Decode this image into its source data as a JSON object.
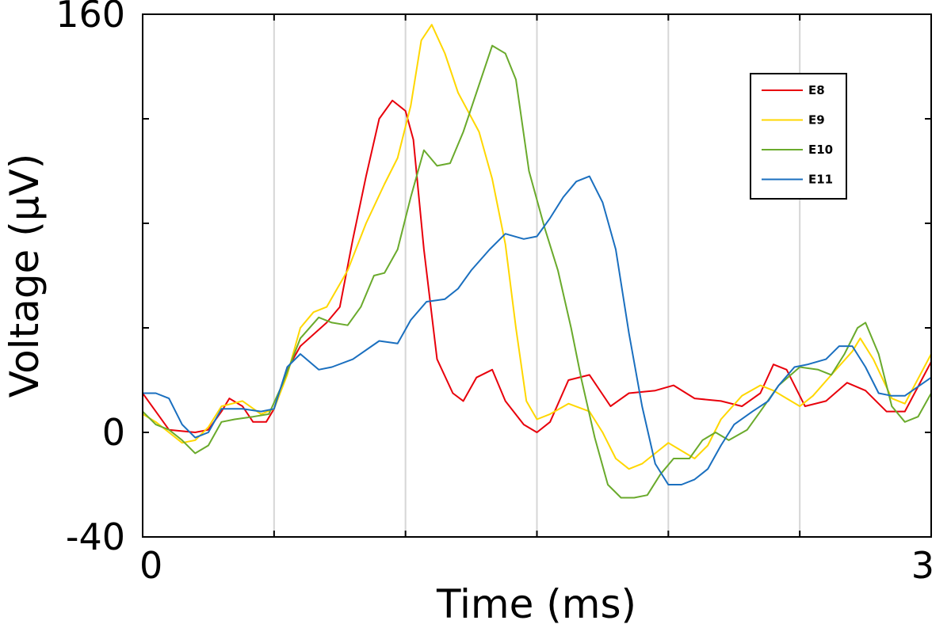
{
  "chart_data": {
    "type": "line",
    "title": "",
    "xlabel": "Time (ms)",
    "ylabel": "Voltage (µV)",
    "xlim": [
      0,
      3
    ],
    "ylim": [
      -40,
      160
    ],
    "x_ticks": [
      0,
      0.5,
      1,
      1.5,
      2,
      2.5,
      3
    ],
    "x_tick_labels": [
      "0",
      "",
      "",
      "",
      "",
      "",
      "3"
    ],
    "y_ticks": [
      -40,
      0,
      40,
      80,
      120,
      160
    ],
    "y_tick_labels": [
      "-40",
      "0",
      "",
      "",
      "",
      "160"
    ],
    "grid": {
      "x": true,
      "y": false
    },
    "legend": {
      "position": "top-right"
    },
    "series": [
      {
        "name": "E8",
        "color": "#e8000b",
        "points": [
          [
            0,
            15
          ],
          [
            0.05,
            8
          ],
          [
            0.1,
            1
          ],
          [
            0.2,
            0
          ],
          [
            0.25,
            1
          ],
          [
            0.3,
            8
          ],
          [
            0.33,
            13
          ],
          [
            0.38,
            10
          ],
          [
            0.42,
            4
          ],
          [
            0.47,
            4
          ],
          [
            0.5,
            9
          ],
          [
            0.55,
            24
          ],
          [
            0.6,
            33
          ],
          [
            0.7,
            42
          ],
          [
            0.75,
            48
          ],
          [
            0.8,
            74
          ],
          [
            0.85,
            98
          ],
          [
            0.9,
            120
          ],
          [
            0.95,
            127
          ],
          [
            1.0,
            123
          ],
          [
            1.03,
            112
          ],
          [
            1.07,
            70
          ],
          [
            1.12,
            28
          ],
          [
            1.18,
            15
          ],
          [
            1.22,
            12
          ],
          [
            1.27,
            21
          ],
          [
            1.33,
            24
          ],
          [
            1.38,
            12
          ],
          [
            1.45,
            3
          ],
          [
            1.5,
            0
          ],
          [
            1.55,
            4
          ],
          [
            1.62,
            20
          ],
          [
            1.7,
            22
          ],
          [
            1.78,
            10
          ],
          [
            1.85,
            15
          ],
          [
            1.95,
            16
          ],
          [
            2.02,
            18
          ],
          [
            2.1,
            13
          ],
          [
            2.2,
            12
          ],
          [
            2.28,
            10
          ],
          [
            2.35,
            15
          ],
          [
            2.4,
            26
          ],
          [
            2.45,
            24
          ],
          [
            2.52,
            10
          ],
          [
            2.6,
            12
          ],
          [
            2.68,
            19
          ],
          [
            2.75,
            16
          ],
          [
            2.83,
            8
          ],
          [
            2.9,
            8
          ],
          [
            3.0,
            27
          ]
        ]
      },
      {
        "name": "E9",
        "color": "#ffd700",
        "points": [
          [
            0,
            7
          ],
          [
            0.05,
            4
          ],
          [
            0.1,
            0
          ],
          [
            0.15,
            -4
          ],
          [
            0.2,
            -3
          ],
          [
            0.25,
            2
          ],
          [
            0.3,
            10
          ],
          [
            0.38,
            12
          ],
          [
            0.45,
            7
          ],
          [
            0.5,
            9
          ],
          [
            0.55,
            22
          ],
          [
            0.6,
            40
          ],
          [
            0.65,
            46
          ],
          [
            0.7,
            48
          ],
          [
            0.78,
            62
          ],
          [
            0.85,
            80
          ],
          [
            0.92,
            95
          ],
          [
            0.97,
            105
          ],
          [
            1.02,
            125
          ],
          [
            1.06,
            150
          ],
          [
            1.1,
            156
          ],
          [
            1.15,
            145
          ],
          [
            1.2,
            130
          ],
          [
            1.28,
            115
          ],
          [
            1.33,
            97
          ],
          [
            1.38,
            72
          ],
          [
            1.42,
            40
          ],
          [
            1.46,
            12
          ],
          [
            1.5,
            5
          ],
          [
            1.55,
            7
          ],
          [
            1.62,
            11
          ],
          [
            1.7,
            8
          ],
          [
            1.75,
            0
          ],
          [
            1.8,
            -10
          ],
          [
            1.85,
            -14
          ],
          [
            1.9,
            -12
          ],
          [
            1.95,
            -8
          ],
          [
            2.0,
            -4
          ],
          [
            2.05,
            -7
          ],
          [
            2.1,
            -10
          ],
          [
            2.15,
            -5
          ],
          [
            2.2,
            5
          ],
          [
            2.28,
            14
          ],
          [
            2.35,
            18
          ],
          [
            2.4,
            16
          ],
          [
            2.45,
            13
          ],
          [
            2.5,
            10
          ],
          [
            2.55,
            14
          ],
          [
            2.62,
            22
          ],
          [
            2.7,
            31
          ],
          [
            2.73,
            36
          ],
          [
            2.78,
            28
          ],
          [
            2.85,
            13
          ],
          [
            2.9,
            11
          ],
          [
            3.0,
            30
          ]
        ]
      },
      {
        "name": "E10",
        "color": "#6aaa2c",
        "points": [
          [
            0,
            8
          ],
          [
            0.05,
            3
          ],
          [
            0.1,
            1
          ],
          [
            0.15,
            -3
          ],
          [
            0.2,
            -8
          ],
          [
            0.25,
            -5
          ],
          [
            0.3,
            4
          ],
          [
            0.35,
            5
          ],
          [
            0.42,
            6
          ],
          [
            0.48,
            7
          ],
          [
            0.53,
            18
          ],
          [
            0.6,
            36
          ],
          [
            0.67,
            44
          ],
          [
            0.72,
            42
          ],
          [
            0.78,
            41
          ],
          [
            0.83,
            48
          ],
          [
            0.88,
            60
          ],
          [
            0.92,
            61
          ],
          [
            0.97,
            70
          ],
          [
            1.02,
            90
          ],
          [
            1.07,
            108
          ],
          [
            1.12,
            102
          ],
          [
            1.17,
            103
          ],
          [
            1.22,
            115
          ],
          [
            1.27,
            130
          ],
          [
            1.33,
            148
          ],
          [
            1.38,
            145
          ],
          [
            1.42,
            135
          ],
          [
            1.47,
            100
          ],
          [
            1.53,
            78
          ],
          [
            1.58,
            62
          ],
          [
            1.63,
            40
          ],
          [
            1.67,
            20
          ],
          [
            1.72,
            -2
          ],
          [
            1.77,
            -20
          ],
          [
            1.82,
            -25
          ],
          [
            1.87,
            -25
          ],
          [
            1.92,
            -24
          ],
          [
            1.97,
            -16
          ],
          [
            2.02,
            -10
          ],
          [
            2.08,
            -10
          ],
          [
            2.13,
            -3
          ],
          [
            2.18,
            0
          ],
          [
            2.23,
            -3
          ],
          [
            2.3,
            1
          ],
          [
            2.35,
            8
          ],
          [
            2.42,
            18
          ],
          [
            2.5,
            25
          ],
          [
            2.57,
            24
          ],
          [
            2.62,
            22
          ],
          [
            2.67,
            30
          ],
          [
            2.72,
            40
          ],
          [
            2.75,
            42
          ],
          [
            2.8,
            30
          ],
          [
            2.85,
            10
          ],
          [
            2.9,
            4
          ],
          [
            2.95,
            6
          ],
          [
            3.0,
            15
          ]
        ]
      },
      {
        "name": "E11",
        "color": "#1a6fbf",
        "points": [
          [
            0,
            15
          ],
          [
            0.05,
            15
          ],
          [
            0.1,
            13
          ],
          [
            0.15,
            3
          ],
          [
            0.2,
            -2
          ],
          [
            0.25,
            0
          ],
          [
            0.3,
            9
          ],
          [
            0.38,
            9
          ],
          [
            0.45,
            8
          ],
          [
            0.5,
            9
          ],
          [
            0.55,
            25
          ],
          [
            0.6,
            30
          ],
          [
            0.67,
            24
          ],
          [
            0.72,
            25
          ],
          [
            0.8,
            28
          ],
          [
            0.9,
            35
          ],
          [
            0.97,
            34
          ],
          [
            1.02,
            43
          ],
          [
            1.08,
            50
          ],
          [
            1.15,
            51
          ],
          [
            1.2,
            55
          ],
          [
            1.25,
            62
          ],
          [
            1.32,
            70
          ],
          [
            1.38,
            76
          ],
          [
            1.45,
            74
          ],
          [
            1.5,
            75
          ],
          [
            1.55,
            82
          ],
          [
            1.6,
            90
          ],
          [
            1.65,
            96
          ],
          [
            1.7,
            98
          ],
          [
            1.75,
            88
          ],
          [
            1.8,
            70
          ],
          [
            1.85,
            38
          ],
          [
            1.9,
            10
          ],
          [
            1.95,
            -12
          ],
          [
            2.0,
            -20
          ],
          [
            2.05,
            -20
          ],
          [
            2.1,
            -18
          ],
          [
            2.15,
            -14
          ],
          [
            2.2,
            -5
          ],
          [
            2.25,
            3
          ],
          [
            2.32,
            8
          ],
          [
            2.38,
            12
          ],
          [
            2.42,
            18
          ],
          [
            2.48,
            25
          ],
          [
            2.53,
            26
          ],
          [
            2.6,
            28
          ],
          [
            2.65,
            33
          ],
          [
            2.7,
            33
          ],
          [
            2.75,
            25
          ],
          [
            2.8,
            15
          ],
          [
            2.85,
            14
          ],
          [
            2.9,
            14
          ],
          [
            3.0,
            21
          ]
        ]
      }
    ]
  }
}
